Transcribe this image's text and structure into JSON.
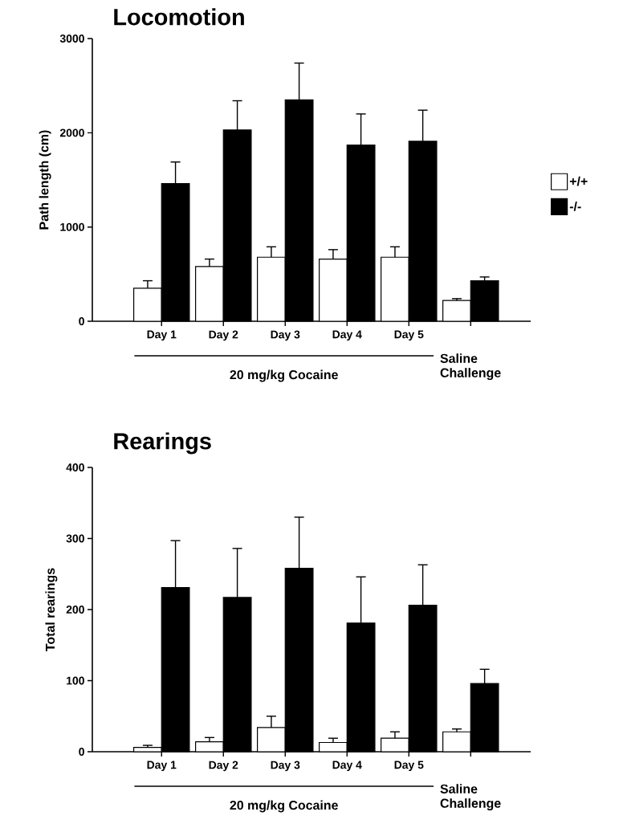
{
  "chart_data": [
    {
      "type": "bar",
      "title": "Locomotion",
      "ylabel": "Path length (cm)",
      "categories": [
        "Day 1",
        "Day 2",
        "Day 3",
        "Day 4",
        "Day 5",
        null
      ],
      "series": [
        {
          "name": "+/+",
          "color": "#ffffff",
          "values": [
            350,
            580,
            680,
            660,
            680,
            220
          ],
          "errors": [
            80,
            80,
            110,
            100,
            110,
            20
          ]
        },
        {
          "name": "-/-",
          "color": "#000000",
          "values": [
            1460,
            2030,
            2350,
            1870,
            1910,
            430
          ],
          "errors": [
            230,
            310,
            390,
            330,
            330,
            40
          ]
        }
      ],
      "ylim": [
        0,
        3000
      ],
      "yticks": [
        0,
        1000,
        2000,
        3000
      ],
      "legend": "right",
      "annotations": [
        "20 mg/kg Cocaine",
        "Saline Challenge"
      ]
    },
    {
      "type": "bar",
      "title": "Rearings",
      "ylabel": "Total rearings",
      "categories": [
        "Day 1",
        "Day 2",
        "Day 3",
        "Day 4",
        "Day 5",
        null
      ],
      "series": [
        {
          "color": "#ffffff",
          "values": [
            6,
            14,
            34,
            13,
            19,
            28
          ],
          "errors": [
            3,
            6,
            16,
            6,
            9,
            4
          ]
        },
        {
          "color": "#000000",
          "values": [
            231,
            217,
            258,
            181,
            206,
            96
          ],
          "errors": [
            66,
            69,
            72,
            65,
            57,
            20
          ]
        }
      ],
      "ylim": [
        0,
        400
      ],
      "yticks": [
        0,
        100,
        200,
        300,
        400
      ],
      "annotations": [
        "20 mg/kg Cocaine",
        "Saline Challenge"
      ]
    }
  ]
}
